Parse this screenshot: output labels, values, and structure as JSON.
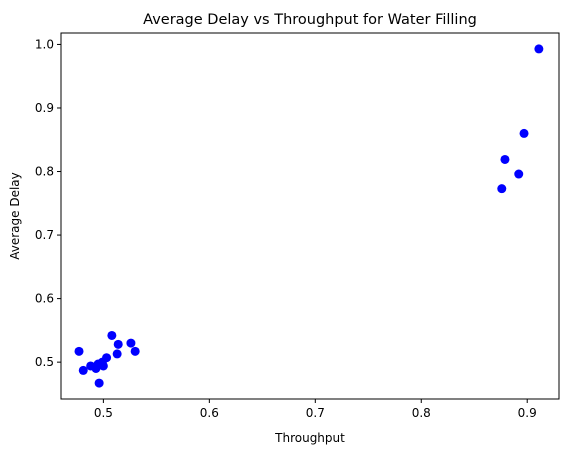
{
  "chart_data": {
    "type": "scatter",
    "title": "Average Delay vs Throughput for Water Filling",
    "xlabel": "Throughput",
    "ylabel": "Average Delay",
    "xlim": [
      0.46,
      0.93
    ],
    "ylim": [
      0.442,
      1.018
    ],
    "xticks": [
      0.5,
      0.6,
      0.7,
      0.8,
      0.9
    ],
    "xtick_labels": [
      "0.5",
      "0.6",
      "0.7",
      "0.8",
      "0.9"
    ],
    "yticks": [
      0.5,
      0.6,
      0.7,
      0.8,
      0.9,
      1.0
    ],
    "ytick_labels": [
      "0.5",
      "0.6",
      "0.7",
      "0.8",
      "0.9",
      "1.0"
    ],
    "grid": false,
    "marker_color": "#0000ff",
    "points": [
      {
        "x": 0.477,
        "y": 0.517
      },
      {
        "x": 0.481,
        "y": 0.487
      },
      {
        "x": 0.488,
        "y": 0.494
      },
      {
        "x": 0.493,
        "y": 0.49
      },
      {
        "x": 0.495,
        "y": 0.497
      },
      {
        "x": 0.496,
        "y": 0.467
      },
      {
        "x": 0.499,
        "y": 0.5
      },
      {
        "x": 0.5,
        "y": 0.494
      },
      {
        "x": 0.503,
        "y": 0.507
      },
      {
        "x": 0.508,
        "y": 0.542
      },
      {
        "x": 0.513,
        "y": 0.513
      },
      {
        "x": 0.514,
        "y": 0.528
      },
      {
        "x": 0.526,
        "y": 0.53
      },
      {
        "x": 0.53,
        "y": 0.517
      },
      {
        "x": 0.876,
        "y": 0.773
      },
      {
        "x": 0.879,
        "y": 0.819
      },
      {
        "x": 0.892,
        "y": 0.796
      },
      {
        "x": 0.897,
        "y": 0.86
      },
      {
        "x": 0.911,
        "y": 0.993
      }
    ]
  }
}
